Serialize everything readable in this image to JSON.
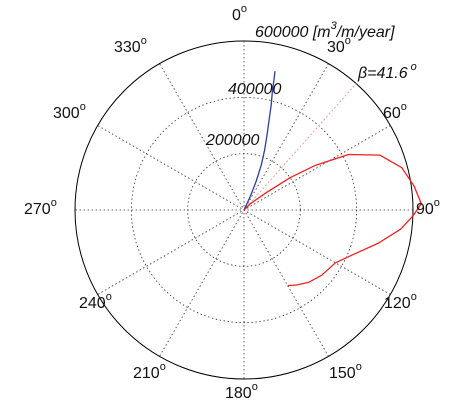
{
  "chart_data": {
    "type": "polar-line",
    "angle_direction": "clockwise",
    "zero_angle_at": "top",
    "angle_unit": "degrees",
    "angle_tick_labels": [
      {
        "angle": 0,
        "text": "0"
      },
      {
        "angle": 30,
        "text": "30"
      },
      {
        "angle": 60,
        "text": "60"
      },
      {
        "angle": 90,
        "text": "90"
      },
      {
        "angle": 120,
        "text": "120"
      },
      {
        "angle": 150,
        "text": "150"
      },
      {
        "angle": 180,
        "text": "180"
      },
      {
        "angle": 210,
        "text": "210"
      },
      {
        "angle": 240,
        "text": "240"
      },
      {
        "angle": 270,
        "text": "270"
      },
      {
        "angle": 300,
        "text": "300"
      },
      {
        "angle": 330,
        "text": "330"
      }
    ],
    "degree_symbol": "o",
    "radial_ticks": [
      200000,
      400000,
      600000
    ],
    "radial_tick_labels": [
      "200000",
      "400000",
      "600000"
    ],
    "radial_max": 600000,
    "unit_label": {
      "prefix": "[m",
      "exponent": "3",
      "suffix": "/m/year]"
    },
    "beta_annotation": {
      "symbol": "β",
      "text": "=41.6",
      "degree": "o",
      "angle": 41.6
    },
    "grid": "dotted",
    "series": [
      {
        "color": "#2b3fa0",
        "points": [
          [
            0,
            0
          ],
          [
            25,
            55000
          ],
          [
            23,
            110000
          ],
          [
            21,
            170000
          ],
          [
            19,
            225000
          ],
          [
            17,
            280000
          ],
          [
            15.5,
            335000
          ],
          [
            14.5,
            385000
          ],
          [
            13.5,
            430000
          ],
          [
            13,
            470000
          ],
          [
            12.6,
            505000
          ]
        ]
      },
      {
        "color": "#ee2222",
        "points": [
          [
            0,
            0
          ],
          [
            45,
            30000
          ],
          [
            52,
            100000
          ],
          [
            55,
            200000
          ],
          [
            58,
            300000
          ],
          [
            62,
            420000
          ],
          [
            68,
            520000
          ],
          [
            75,
            580000
          ],
          [
            82,
            610000
          ],
          [
            88,
            630000
          ],
          [
            92,
            600000
          ],
          [
            97,
            560000
          ],
          [
            104,
            490000
          ],
          [
            112,
            420000
          ],
          [
            120,
            375000
          ],
          [
            130,
            360000
          ],
          [
            138,
            345000
          ],
          [
            145,
            325000
          ],
          [
            150,
            310000
          ]
        ]
      }
    ]
  }
}
